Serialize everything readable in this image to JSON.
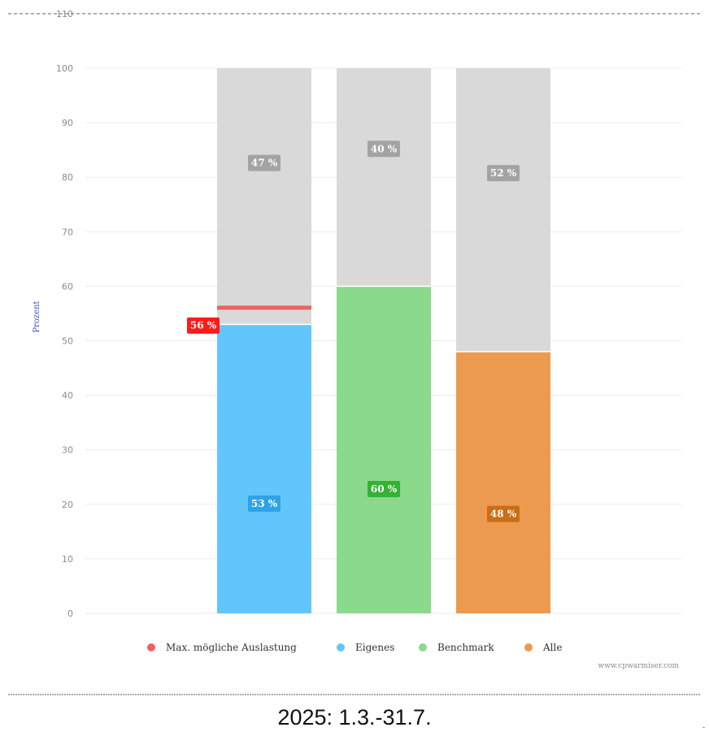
{
  "chart_data": {
    "type": "bar",
    "stacked": true,
    "ylabel": "Prozent",
    "ylim": [
      0,
      110
    ],
    "yticks": [
      0,
      10,
      20,
      30,
      40,
      50,
      60,
      70,
      80,
      90,
      100,
      110
    ],
    "grid": true,
    "bars": [
      {
        "key": "eigenes",
        "filled": 53,
        "filled_label": "53 %",
        "remaining_label": "47 %",
        "color": "#62c6fb",
        "label_color": "#2ea2e9",
        "marker": 56,
        "marker_label": "56 %",
        "marker_color": "#f26161",
        "marker_label_color": "#ff1a1a"
      },
      {
        "key": "benchmark",
        "filled": 60,
        "filled_label": "60 %",
        "remaining_label": "40 %",
        "color": "#8bd98b",
        "label_color": "#33b233"
      },
      {
        "key": "alle",
        "filled": 48,
        "filled_label": "48 %",
        "remaining_label": "52 %",
        "color": "#ec9a4f",
        "label_color": "#c96e17"
      }
    ],
    "remaining_color": "#d9d9d9",
    "remaining_label_color": "#a3a3a3",
    "legend_position": "bottom",
    "legend": [
      {
        "label": "Max. mögliche Auslastung",
        "color": "#f26161"
      },
      {
        "label": "Eigenes",
        "color": "#62c6fb"
      },
      {
        "label": "Benchmark",
        "color": "#8bd98b"
      },
      {
        "label": "Alle",
        "color": "#ec9a4f"
      }
    ],
    "credit": "www.cpwarmiser.com"
  },
  "period_label": "2025: 1.3.-31.7."
}
